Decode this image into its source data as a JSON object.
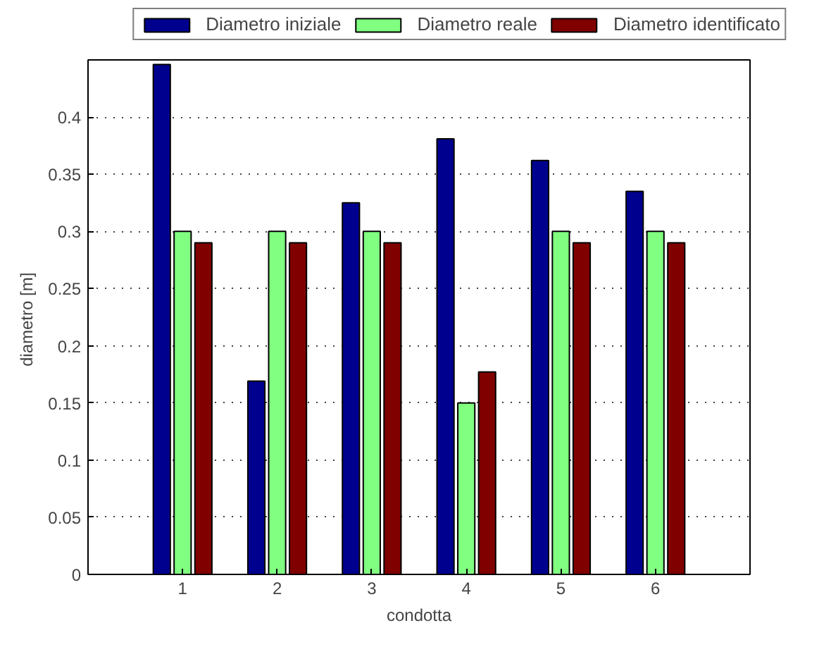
{
  "chart_data": {
    "type": "bar",
    "xlabel": "condotta",
    "ylabel": "diametro  [m]",
    "x": [
      1,
      2,
      3,
      4,
      5,
      6
    ],
    "xlim": [
      0,
      7
    ],
    "xticks": [
      1,
      2,
      3,
      4,
      5,
      6
    ],
    "ylim": [
      0,
      0.45
    ],
    "yticks": [
      0,
      0.05,
      0.1,
      0.15,
      0.2,
      0.25,
      0.3,
      0.35,
      0.4
    ],
    "grid": "y",
    "legend": "top",
    "series": [
      {
        "name": "Diametro iniziale",
        "color": "#00008f",
        "values": [
          0.446,
          0.169,
          0.325,
          0.381,
          0.362,
          0.335
        ]
      },
      {
        "name": "Diametro reale",
        "color": "#80ff80",
        "values": [
          0.3,
          0.3,
          0.3,
          0.15,
          0.3,
          0.3
        ]
      },
      {
        "name": "Diametro identificato",
        "color": "#800000",
        "values": [
          0.29,
          0.29,
          0.29,
          0.177,
          0.29,
          0.29
        ]
      }
    ]
  }
}
